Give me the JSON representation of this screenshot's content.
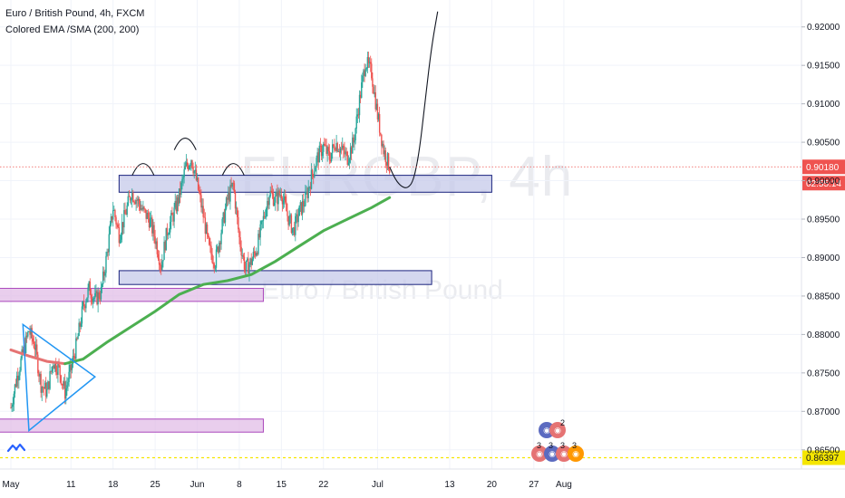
{
  "header": {
    "title": "Euro / British Pound, 4h, FXCM",
    "indicator": "Colored EMA /SMA (200, 200)"
  },
  "watermark": {
    "symbol": "EURGBP, 4h",
    "name": "Euro / British Pound"
  },
  "colors": {
    "up": "#26a69a",
    "down": "#ef5350",
    "ema_green": "#4caf50",
    "ema_red": "#e57373",
    "zone_blue_fill": "#c5cae9",
    "zone_blue_stroke": "#1a237e",
    "zone_purple_fill": "#e1bee7",
    "zone_purple_stroke": "#ab47bc",
    "price_tag": "#ef5350",
    "low_line": "#f5e600"
  },
  "chart_data": {
    "type": "candlestick",
    "title": "Euro / British Pound, 4h, FXCM",
    "x_ticks": [
      "May",
      "11",
      "18",
      "25",
      "Jun",
      "8",
      "15",
      "22",
      "Jul",
      "13",
      "20",
      "27",
      "Aug"
    ],
    "y_ticks": [
      "0.92000",
      "0.91500",
      "0.91000",
      "0.90500",
      "0.90000",
      "0.89500",
      "0.89000",
      "0.88500",
      "0.88000",
      "0.87500",
      "0.87000",
      "0.86500"
    ],
    "y_range": [
      0.8625,
      0.9235
    ],
    "last_price": {
      "value": 0.9018,
      "label": "0.90180",
      "countdown": "02:55:14"
    },
    "low_level": {
      "value": 0.86397,
      "label": "0.86397"
    },
    "close_path": [
      [
        "May 1",
        0.8705
      ],
      [
        "May 2",
        0.8745
      ],
      [
        "May 3",
        0.8775
      ],
      [
        "May 4",
        0.8805
      ],
      [
        "May 5",
        0.8785
      ],
      [
        "May 6",
        0.8735
      ],
      [
        "May 7",
        0.8725
      ],
      [
        "May 8",
        0.8765
      ],
      [
        "May 9",
        0.8755
      ],
      [
        "May 10",
        0.8725
      ],
      [
        "May 11",
        0.8755
      ],
      [
        "May 12",
        0.879
      ],
      [
        "May 13",
        0.8835
      ],
      [
        "May 14",
        0.886
      ],
      [
        "May 15",
        0.8845
      ],
      [
        "May 16",
        0.8855
      ],
      [
        "May 17",
        0.8905
      ],
      [
        "May 18",
        0.8965
      ],
      [
        "May 19",
        0.893
      ],
      [
        "May 20",
        0.8955
      ],
      [
        "May 21",
        0.8985
      ],
      [
        "May 22",
        0.8975
      ],
      [
        "May 23",
        0.896
      ],
      [
        "May 24",
        0.895
      ],
      [
        "May 25",
        0.8925
      ],
      [
        "May 26",
        0.889
      ],
      [
        "May 27",
        0.8935
      ],
      [
        "May 28",
        0.8955
      ],
      [
        "May 29",
        0.898
      ],
      [
        "May 30",
        0.9015
      ],
      [
        "May 31",
        0.903
      ],
      [
        "Jun 1",
        0.8995
      ],
      [
        "Jun 2",
        0.8955
      ],
      [
        "Jun 3",
        0.891
      ],
      [
        "Jun 4",
        0.8895
      ],
      [
        "Jun 5",
        0.8935
      ],
      [
        "Jun 6",
        0.8975
      ],
      [
        "Jun 7",
        0.8995
      ],
      [
        "Jun 8",
        0.8925
      ],
      [
        "Jun 9",
        0.8885
      ],
      [
        "Jun 10",
        0.8895
      ],
      [
        "Jun 11",
        0.8915
      ],
      [
        "Jun 12",
        0.895
      ],
      [
        "Jun 13",
        0.8985
      ],
      [
        "Jun 14",
        0.8975
      ],
      [
        "Jun 15",
        0.8985
      ],
      [
        "Jun 16",
        0.8955
      ],
      [
        "Jun 17",
        0.8935
      ],
      [
        "Jun 18",
        0.896
      ],
      [
        "Jun 19",
        0.8975
      ],
      [
        "Jun 20",
        0.9005
      ],
      [
        "Jun 21",
        0.903
      ],
      [
        "Jun 22",
        0.9045
      ],
      [
        "Jun 23",
        0.903
      ],
      [
        "Jun 24",
        0.905
      ],
      [
        "Jun 25",
        0.904
      ],
      [
        "Jun 26",
        0.903
      ],
      [
        "Jun 27",
        0.905
      ],
      [
        "Jun 28",
        0.9105
      ],
      [
        "Jun 29",
        0.9155
      ],
      [
        "Jun 30",
        0.914
      ],
      [
        "Jul 1",
        0.9085
      ],
      [
        "Jul 2",
        0.904
      ],
      [
        "Jul 3",
        0.9018
      ]
    ],
    "ema_200": [
      [
        "May 1",
        0.878
      ],
      [
        "May 4",
        0.8772
      ],
      [
        "May 7",
        0.8765
      ],
      [
        "May 10",
        0.8762
      ],
      [
        "May 13",
        0.8768
      ],
      [
        "May 17",
        0.879
      ],
      [
        "May 21",
        0.881
      ],
      [
        "May 25",
        0.883
      ],
      [
        "May 29",
        0.8852
      ],
      [
        "Jun 2",
        0.8865
      ],
      [
        "Jun 6",
        0.887
      ],
      [
        "Jun 10",
        0.8878
      ],
      [
        "Jun 14",
        0.8895
      ],
      [
        "Jun 18",
        0.8915
      ],
      [
        "Jun 22",
        0.8935
      ],
      [
        "Jun 26",
        0.895
      ],
      [
        "Jun 30",
        0.8965
      ],
      [
        "Jul 3",
        0.8978
      ]
    ],
    "ema_red_until": "May 11",
    "zones": [
      {
        "from": "May 19",
        "to": "Jul 20",
        "top": 0.9007,
        "bottom": 0.8985,
        "color": "blue"
      },
      {
        "from": "May 19",
        "to": "Jul 10",
        "top": 0.8883,
        "bottom": 0.8865,
        "color": "blue"
      },
      {
        "from": "Apr 30",
        "to": "Jun 12",
        "top": 0.886,
        "bottom": 0.8843,
        "color": "purple"
      },
      {
        "from": "Apr 30",
        "to": "Jun 12",
        "top": 0.869,
        "bottom": 0.8673,
        "color": "purple"
      }
    ],
    "triangle": [
      [
        "May 3",
        0.8813
      ],
      [
        "May 4",
        0.8675
      ],
      [
        "May 15",
        0.8745
      ]
    ],
    "arcs": [
      {
        "center": "May 23",
        "base": 0.9007
      },
      {
        "center": "May 30",
        "base": 0.904
      },
      {
        "center": "Jun 7",
        "base": 0.9007
      }
    ],
    "projection": [
      [
        "Jul 3",
        0.9018
      ],
      [
        "Jul 4",
        0.9001
      ],
      [
        "Jul 5",
        0.8992
      ],
      [
        "Jul 6",
        0.899
      ],
      [
        "Jul 7",
        0.9
      ],
      [
        "Jul 8",
        0.904
      ],
      [
        "Jul 9",
        0.911
      ],
      [
        "Jul 10",
        0.9175
      ],
      [
        "Jul 11",
        0.922
      ]
    ]
  },
  "events": [
    {
      "text": "2"
    },
    {
      "text": "3"
    },
    {
      "text": "3"
    },
    {
      "text": "3"
    },
    {
      "text": "3"
    }
  ]
}
